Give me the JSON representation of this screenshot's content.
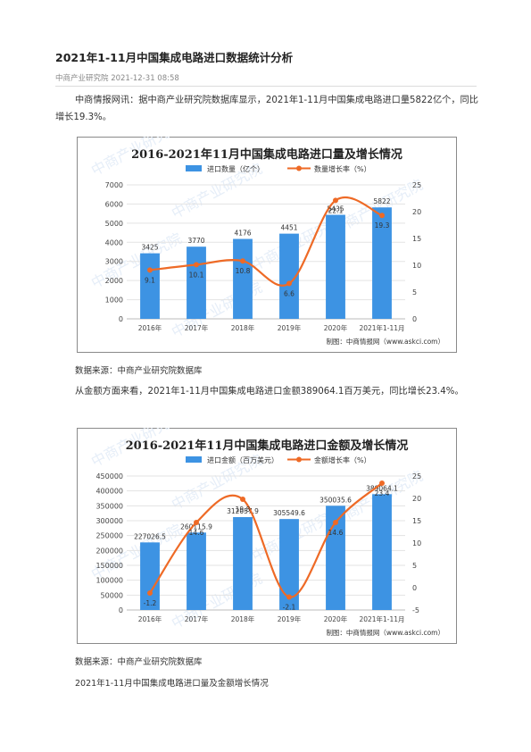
{
  "article": {
    "title": "2021年1-11月中国集成电路进口数据统计分析",
    "meta": "中商产业研究院 2021-12-31 08:58",
    "para1": "中商情报网讯：据中商产业研究院数据库显示，2021年1-11月中国集成电路进口量5822亿个，同比增长19.3%。",
    "source1": "数据来源：中商产业研究院数据库",
    "para2": "从金额方面来看，2021年1-11月中国集成电路进口金额389064.1百万美元，同比增长23.4%。",
    "source2": "数据来源：中商产业研究院数据库",
    "footer": "2021年1-11月中国集成电路进口量及金额增长情况"
  },
  "colors": {
    "bar": "#3d93e3",
    "line": "#ee6a26",
    "grid": "#e3e3e3",
    "frame": "#8a8a8a",
    "axis_text": "#444444"
  },
  "watermark": "中商产业研究院",
  "chart_data": [
    {
      "type": "bar",
      "title": "2016-2021年11月中国集成电路进口量及增长情况",
      "categories": [
        "2016年",
        "2017年",
        "2018年",
        "2019年",
        "2020年",
        "2021年1-11月"
      ],
      "series": [
        {
          "name": "进口数量（亿个）",
          "type": "bar",
          "axis": "left",
          "values": [
            3425,
            3770,
            4176,
            4451,
            5435,
            5822
          ],
          "labels": [
            "3425",
            "3770",
            "4176",
            "4451",
            "5435",
            "5822"
          ]
        },
        {
          "name": "数量增长率（%）",
          "type": "line",
          "axis": "right",
          "values": [
            9.1,
            10.1,
            10.8,
            6.6,
            22.1,
            19.3
          ],
          "labels": [
            "9.1",
            "10.1",
            "10.8",
            "6.6",
            "22.1",
            "19.3"
          ]
        }
      ],
      "ylim": [
        0,
        7000
      ],
      "yticks": [
        0,
        1000,
        2000,
        3000,
        4000,
        5000,
        6000,
        7000
      ],
      "y2lim": [
        0,
        25
      ],
      "y2ticks": [
        0,
        5,
        10,
        15,
        20,
        25
      ],
      "source_note": "制图：中商情报网（www.askci.com）",
      "legend": "top",
      "grid": true
    },
    {
      "type": "bar",
      "title": "2016-2021年11月中国集成电路进口金额及增长情况",
      "categories": [
        "2016年",
        "2017年",
        "2018年",
        "2019年",
        "2020年",
        "2021年1-11月"
      ],
      "series": [
        {
          "name": "进口金额（百万美元）",
          "type": "bar",
          "axis": "left",
          "values": [
            227026.5,
            260115.9,
            312057.9,
            305549.6,
            350035.6,
            389064.1
          ],
          "labels": [
            "227026.5",
            "260115.9",
            "312057.9",
            "305549.6",
            "350035.6",
            "389064.1"
          ]
        },
        {
          "name": "金额增长率（%）",
          "type": "line",
          "axis": "right",
          "values": [
            -1.2,
            14.6,
            19.8,
            -2.1,
            14.6,
            23.4
          ],
          "labels": [
            "-1.2",
            "14.6",
            "19.8",
            "-2.1",
            "14.6",
            "23.4"
          ]
        }
      ],
      "ylim": [
        0,
        450000
      ],
      "yticks": [
        0,
        50000,
        100000,
        150000,
        200000,
        250000,
        300000,
        350000,
        400000,
        450000
      ],
      "y2lim": [
        -5,
        25
      ],
      "y2ticks": [
        -5,
        0,
        5,
        10,
        15,
        20,
        25
      ],
      "source_note": "制图：中商情报网（www.askci.com）",
      "legend": "top",
      "grid": true
    }
  ]
}
